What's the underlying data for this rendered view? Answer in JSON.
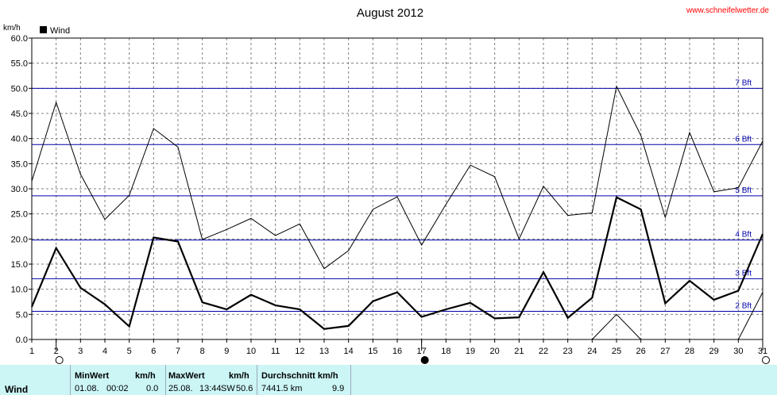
{
  "header": {
    "title": "August 2012",
    "site": "www.schneifelwetter.de",
    "unit": "km/h",
    "legend_label": "Wind"
  },
  "colors": {
    "beaufort_line": "#0000aa",
    "site_link": "#ff0000",
    "stats_bg": "#ccf5f5",
    "grid": "#808080"
  },
  "chart_data": {
    "type": "line",
    "title": "August 2012",
    "ylabel": "km/h",
    "ylim": [
      0,
      60
    ],
    "yticks": [
      "0.0",
      "5.0",
      "10.0",
      "15.0",
      "20.0",
      "25.0",
      "30.0",
      "35.0",
      "40.0",
      "45.0",
      "50.0",
      "55.0",
      "60.0"
    ],
    "x": [
      1,
      2,
      3,
      4,
      5,
      6,
      7,
      8,
      9,
      10,
      11,
      12,
      13,
      14,
      15,
      16,
      17,
      18,
      19,
      20,
      21,
      22,
      23,
      24,
      25,
      26,
      27,
      28,
      29,
      30,
      31
    ],
    "xlim": [
      1,
      31
    ],
    "grid": true,
    "legend": "top-left",
    "series": [
      {
        "name": "Wind",
        "role": "average",
        "values": [
          6.5,
          18.2,
          10.3,
          7.0,
          2.6,
          20.3,
          19.5,
          7.4,
          6.0,
          8.9,
          6.8,
          6.0,
          2.1,
          2.7,
          7.6,
          9.4,
          4.5,
          6.0,
          7.3,
          4.2,
          4.4,
          13.4,
          4.3,
          8.3,
          28.3,
          25.9,
          7.2,
          11.7,
          7.9,
          9.7,
          21.0
        ]
      },
      {
        "role": "gust",
        "values": [
          31.5,
          47.2,
          32.9,
          23.9,
          28.7,
          42.0,
          38.3,
          19.9,
          21.9,
          24.1,
          20.7,
          23.0,
          14.1,
          17.7,
          25.9,
          28.4,
          18.8,
          26.9,
          34.7,
          32.4,
          20.0,
          30.5,
          24.7,
          25.2,
          50.4,
          40.6,
          24.3,
          41.2,
          29.4,
          30.2,
          39.5
        ]
      },
      {
        "role": "min",
        "segments": [
          [
            [
              24,
              0
            ],
            [
              25,
              5.0
            ],
            [
              26,
              0
            ]
          ],
          [
            [
              30,
              0
            ],
            [
              31,
              9.4
            ]
          ]
        ]
      }
    ],
    "reference_lines": [
      {
        "label": "2 Bft",
        "value": 5.6
      },
      {
        "label": "3 Bft",
        "value": 12.1
      },
      {
        "label": "4 Bft",
        "value": 19.8
      },
      {
        "label": "5 Bft",
        "value": 28.6
      },
      {
        "label": "6 Bft",
        "value": 38.8
      },
      {
        "label": "7 Bft",
        "value": 50.0
      }
    ],
    "moon_phases": [
      {
        "day": 2,
        "phase": "full"
      },
      {
        "day": 17,
        "phase": "new"
      },
      {
        "day": 31,
        "phase": "full"
      }
    ]
  },
  "stats": {
    "row_label": "Wind",
    "min": {
      "header": "MinWert",
      "unit": "km/h",
      "date": "01.08.",
      "time": "00:02",
      "value": "0.0"
    },
    "max": {
      "header": "MaxWert",
      "unit": "km/h",
      "date": "25.08.",
      "time": "13:44",
      "direction": "SW",
      "value": "50.6"
    },
    "avg": {
      "header": "Durchschnitt km/h",
      "distance": "7441.5 km",
      "value": "9.9"
    }
  }
}
